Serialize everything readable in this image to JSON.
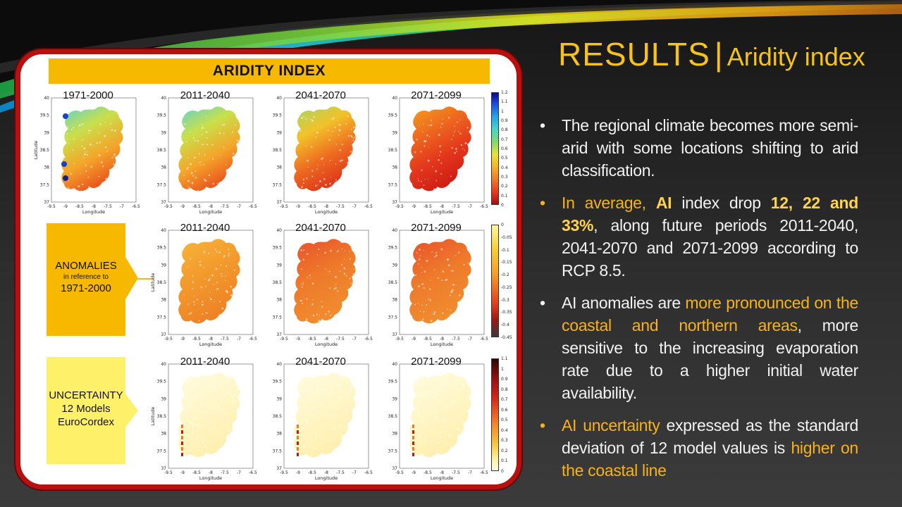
{
  "panel": {
    "title": "ARIDITY INDEX",
    "rows": [
      {
        "label_lines": [],
        "maps": [
          "1971-2000",
          "2011-2040",
          "2041-2070",
          "2071-2099"
        ],
        "scheme": "ai",
        "colorbar_ticks": [
          "1.2",
          "1.1",
          "1",
          "0.9",
          "0.8",
          "0.7",
          "0.6",
          "0.5",
          "0.4",
          "0.3",
          "0.2",
          "0.1",
          "0"
        ]
      },
      {
        "label_lines": [
          "ANOMALIES",
          "in reference to",
          "1971-2000"
        ],
        "maps": [
          "2011-2040",
          "2041-2070",
          "2071-2099"
        ],
        "scheme": "anom",
        "colorbar_ticks": [
          "0",
          "-0.05",
          "-0.1",
          "-0.15",
          "-0.2",
          "-0.25",
          "-0.3",
          "-0.35",
          "-0.4",
          "-0.45"
        ]
      },
      {
        "label_lines": [
          "UNCERTAINTY",
          "12 Models",
          "EuroCordex"
        ],
        "maps": [
          "2011-2040",
          "2041-2070",
          "2071-2099"
        ],
        "scheme": "unc",
        "colorbar_ticks": [
          "1.1",
          "1",
          "0.9",
          "0.8",
          "0.7",
          "0.6",
          "0.5",
          "0.4",
          "0.3",
          "0.2",
          "0.1",
          "0"
        ]
      }
    ],
    "axis": {
      "xticks": [
        "-9.5",
        "-9",
        "-8.5",
        "-8",
        "-7.5",
        "-7",
        "-6.5"
      ],
      "yticks": [
        "40",
        "39.5",
        "39",
        "38.5",
        "38",
        "37.5",
        "37"
      ],
      "xlabel": "Longitude",
      "ylabel": "Latitude"
    }
  },
  "title": {
    "main": "RESULTS",
    "sep": "|",
    "sub": "Aridity index"
  },
  "bullets": {
    "b1": "The regional climate becomes more semi-arid with some locations shifting to arid classification.",
    "b2": {
      "t1": "In average, ",
      "t2": "AI",
      "t3": " index drop ",
      "t4": "12, 22 and 33%",
      "t5": ", along future periods 2011-2040, 2041-2070 and 2071-2099 according to RCP 8.5."
    },
    "b3": {
      "t1": "AI anomalies are ",
      "t2": "more pronounced on the coastal and northern areas",
      "t3": ", more sensitive to the increasing evaporation rate due to a higher initial water availability."
    },
    "b4": {
      "t1": "AI uncertainty",
      "t2": " expressed as the standard deviation of 12 model values is ",
      "t3": "higher on the coastal line"
    },
    "dot": "•"
  },
  "colors": {
    "accent": "#f7b21c",
    "panel_border": "#b80f0f",
    "anomalies_box": "#f7b800",
    "uncertainty_box": "#fff06a"
  }
}
